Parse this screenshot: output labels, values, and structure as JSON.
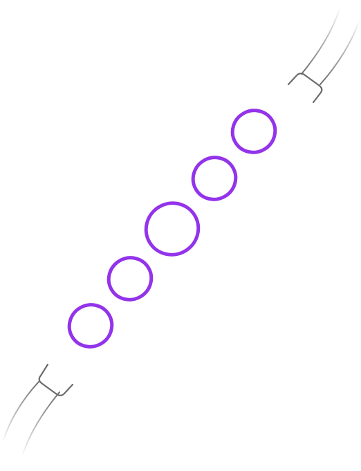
{
  "colors": {
    "ring": "#9333ea",
    "cable": "#6b6b6b",
    "cable_fade": "#ffffff",
    "background": "#ffffff"
  },
  "icons": {
    "top_connector": "usb-plug-icon",
    "bottom_connector": "usb-plug-icon",
    "rings": "circle-ring-icon"
  },
  "loading": {
    "ring_count": 5
  }
}
